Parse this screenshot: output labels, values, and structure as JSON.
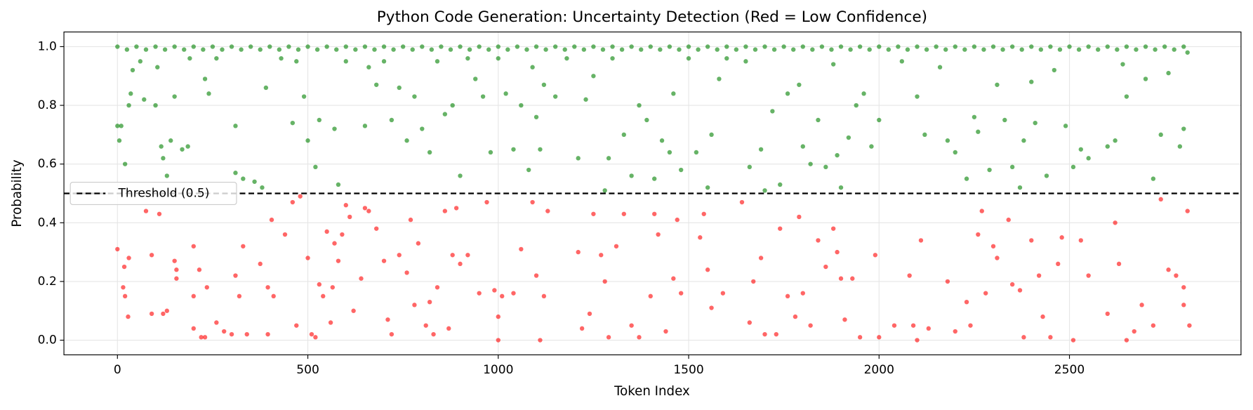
{
  "chart_data": {
    "type": "scatter",
    "title": "Python Code Generation: Uncertainty Detection (Red = Low Confidence)",
    "x_label": "Token Index",
    "y_label": "Probability",
    "xlim": [
      -140.5,
      2950.5
    ],
    "ylim": [
      -0.05,
      1.05
    ],
    "xticks": [
      0,
      500,
      1000,
      1500,
      2000,
      2500
    ],
    "yticks": [
      {
        "value": 0,
        "label": "0.0"
      },
      0.2,
      0.4,
      0.6,
      0.8,
      {
        "value": 1,
        "label": "1.0"
      }
    ],
    "grid": true,
    "legend": "left",
    "threshold": {
      "value": 0.5,
      "label": "Threshold (0.5)",
      "color": "#000000"
    },
    "series": [
      {
        "color": "#ff0000",
        "x": [
          0,
          15,
          18,
          20,
          30,
          28,
          75,
          90,
          90,
          110,
          120,
          130,
          150,
          155,
          155,
          200,
          200,
          200,
          215,
          220,
          230,
          235,
          260,
          280,
          300,
          310,
          320,
          330,
          340,
          375,
          395,
          395,
          410,
          405,
          440,
          460,
          470,
          480,
          500,
          510,
          520,
          530,
          540,
          550,
          560,
          565,
          570,
          580,
          590,
          600,
          610,
          620,
          640,
          650,
          660,
          680,
          700,
          710,
          720,
          740,
          760,
          770,
          780,
          790,
          810,
          820,
          830,
          840,
          860,
          870,
          880,
          890,
          900,
          920,
          950,
          970,
          990,
          1000,
          1000,
          1010,
          1040,
          1060,
          1090,
          1100,
          1110,
          1120,
          1130,
          1210,
          1220,
          1240,
          1250,
          1270,
          1280,
          1290,
          1310,
          1330,
          1350,
          1370,
          1400,
          1410,
          1420,
          1440,
          1460,
          1470,
          1480,
          1530,
          1540,
          1550,
          1560,
          1590,
          1640,
          1660,
          1670,
          1690,
          1700,
          1730,
          1740,
          1760,
          1780,
          1790,
          1800,
          1820,
          1840,
          1860,
          1880,
          1890,
          1900,
          1910,
          1930,
          1950,
          1990,
          2000,
          2040,
          2080,
          2090,
          2100,
          2110,
          2130,
          2180,
          2200,
          2230,
          2240,
          2260,
          2270,
          2280,
          2300,
          2310,
          2340,
          2350,
          2370,
          2380,
          2400,
          2420,
          2430,
          2450,
          2470,
          2480,
          2510,
          2530,
          2550,
          2600,
          2620,
          2630,
          2650,
          2670,
          2690,
          2720,
          2740,
          2760,
          2780,
          2800,
          2800,
          2810,
          2815
        ],
        "values": [
          0.31,
          0.18,
          0.25,
          0.15,
          0.28,
          0.08,
          0.44,
          0.29,
          0.09,
          0.43,
          0.09,
          0.1,
          0.27,
          0.21,
          0.24,
          0.32,
          0.15,
          0.04,
          0.24,
          0.01,
          0.01,
          0.18,
          0.06,
          0.03,
          0.02,
          0.22,
          0.15,
          0.32,
          0.02,
          0.26,
          0.18,
          0.02,
          0.15,
          0.41,
          0.36,
          0.47,
          0.05,
          0.49,
          0.28,
          0.02,
          0.01,
          0.19,
          0.15,
          0.37,
          0.06,
          0.18,
          0.33,
          0.27,
          0.36,
          0.46,
          0.42,
          0.1,
          0.21,
          0.45,
          0.44,
          0.38,
          0.27,
          0.07,
          0.02,
          0.29,
          0.23,
          0.41,
          0.12,
          0.33,
          0.05,
          0.13,
          0.02,
          0.18,
          0.44,
          0.04,
          0.29,
          0.45,
          0.26,
          0.29,
          0.16,
          0.47,
          0.17,
          0,
          0.08,
          0.15,
          0.16,
          0.31,
          0.47,
          0.22,
          0,
          0.15,
          0.44,
          0.3,
          0.04,
          0.09,
          0.43,
          0.29,
          0.2,
          0.01,
          0.32,
          0.43,
          0.05,
          0.01,
          0.15,
          0.43,
          0.36,
          0.03,
          0.21,
          0.41,
          0.16,
          0.35,
          0.43,
          0.24,
          0.11,
          0.16,
          0.47,
          0.06,
          0.2,
          0.28,
          0.02,
          0.02,
          0.38,
          0.15,
          0.08,
          0.42,
          0.16,
          0.05,
          0.34,
          0.25,
          0.38,
          0.3,
          0.21,
          0.07,
          0.21,
          0.01,
          0.29,
          0.01,
          0.05,
          0.22,
          0.05,
          0,
          0.34,
          0.04,
          0.2,
          0.03,
          0.13,
          0.05,
          0.36,
          0.44,
          0.16,
          0.32,
          0.28,
          0.41,
          0.19,
          0.17,
          0.01,
          0.34,
          0.22,
          0.08,
          0.01,
          0.26,
          0.35,
          0,
          0.34,
          0.22,
          0.09,
          0.4,
          0.26,
          0,
          0.03,
          0.12,
          0.05,
          0.48,
          0.24,
          0.22,
          0.18,
          0.12,
          0.44,
          0.05
        ]
      },
      {
        "color": "#008000",
        "x": [
          0,
          5,
          10,
          20,
          30,
          35,
          40,
          60,
          70,
          100,
          105,
          115,
          120,
          130,
          140,
          150,
          170,
          185,
          190,
          230,
          240,
          260,
          310,
          310,
          330,
          360,
          380,
          390,
          430,
          460,
          470,
          490,
          500,
          520,
          530,
          570,
          580,
          600,
          650,
          660,
          680,
          700,
          720,
          740,
          760,
          780,
          800,
          820,
          840,
          860,
          880,
          900,
          920,
          940,
          960,
          980,
          1000,
          1020,
          1040,
          1060,
          1080,
          1090,
          1100,
          1110,
          1120,
          1150,
          1180,
          1210,
          1230,
          1250,
          1280,
          1290,
          1300,
          1330,
          1350,
          1370,
          1390,
          1410,
          1430,
          1450,
          1460,
          1480,
          1500,
          1520,
          1550,
          1560,
          1580,
          1600,
          1650,
          1660,
          1690,
          1700,
          1720,
          1740,
          1760,
          1790,
          1800,
          1820,
          1840,
          1860,
          1880,
          1890,
          1900,
          1920,
          1940,
          1960,
          1980,
          2000,
          2060,
          2100,
          2120,
          2160,
          2180,
          2200,
          2230,
          2250,
          2260,
          2290,
          2310,
          2330,
          2350,
          2370,
          2380,
          2400,
          2410,
          2440,
          2460,
          2490,
          2510,
          2530,
          2550,
          2600,
          2620,
          2640,
          2650,
          2700,
          2720,
          2740,
          2760,
          2790,
          2800,
          2810,
          0,
          50,
          100,
          150,
          200,
          250,
          300,
          350,
          400,
          450,
          500,
          550,
          600,
          650,
          700,
          750,
          800,
          850,
          900,
          950,
          1000,
          1050,
          1100,
          1150,
          1200,
          1250,
          1300,
          1350,
          1400,
          1450,
          1500,
          1550,
          1600,
          1650,
          1700,
          1750,
          1800,
          1850,
          1900,
          1950,
          2000,
          2050,
          2100,
          2150,
          2200,
          2250,
          2300,
          2350,
          2400,
          2450,
          2500,
          2550,
          2600,
          2650,
          2700,
          2750,
          2800,
          25,
          75,
          125,
          175,
          225,
          275,
          325,
          375,
          425,
          475,
          525,
          575,
          625,
          675,
          725,
          775,
          825,
          875,
          925,
          975,
          1025,
          1075,
          1125,
          1175,
          1225,
          1275,
          1325,
          1375,
          1425,
          1475,
          1525,
          1575,
          1625,
          1675,
          1725,
          1775,
          1825,
          1875,
          1925,
          1975,
          2025,
          2075,
          2125,
          2175,
          2225,
          2275,
          2325,
          2375,
          2425,
          2475,
          2525,
          2575,
          2625,
          2675,
          2725,
          2775
        ],
        "values": [
          0.73,
          0.68,
          0.73,
          0.6,
          0.8,
          0.84,
          0.92,
          0.95,
          0.82,
          0.8,
          0.93,
          0.66,
          0.62,
          0.56,
          0.68,
          0.83,
          0.65,
          0.66,
          0.96,
          0.89,
          0.84,
          0.96,
          0.57,
          0.73,
          0.55,
          0.54,
          0.52,
          0.86,
          0.96,
          0.74,
          0.95,
          0.83,
          0.68,
          0.59,
          0.75,
          0.72,
          0.53,
          0.95,
          0.73,
          0.93,
          0.87,
          0.95,
          0.75,
          0.86,
          0.68,
          0.83,
          0.72,
          0.64,
          0.95,
          0.77,
          0.8,
          0.56,
          0.96,
          0.89,
          0.83,
          0.64,
          0.96,
          0.84,
          0.65,
          0.8,
          0.58,
          0.93,
          0.76,
          0.65,
          0.87,
          0.83,
          0.96,
          0.62,
          0.82,
          0.9,
          0.51,
          0.62,
          0.96,
          0.7,
          0.56,
          0.8,
          0.75,
          0.55,
          0.68,
          0.64,
          0.84,
          0.58,
          0.96,
          0.64,
          0.52,
          0.7,
          0.89,
          0.96,
          0.95,
          0.59,
          0.65,
          0.51,
          0.78,
          0.53,
          0.84,
          0.87,
          0.66,
          0.6,
          0.75,
          0.59,
          0.94,
          0.63,
          0.52,
          0.69,
          0.8,
          0.84,
          0.66,
          0.75,
          0.95,
          0.83,
          0.7,
          0.93,
          0.68,
          0.64,
          0.55,
          0.76,
          0.71,
          0.58,
          0.87,
          0.75,
          0.59,
          0.52,
          0.68,
          0.88,
          0.74,
          0.56,
          0.92,
          0.73,
          0.59,
          0.65,
          0.62,
          0.66,
          0.68,
          0.94,
          0.83,
          0.89,
          0.55,
          0.7,
          0.91,
          0.66,
          0.72,
          0.98,
          1,
          1,
          1,
          1,
          1,
          1,
          1,
          1,
          1,
          1,
          1,
          1,
          1,
          1,
          1,
          1,
          1,
          1,
          1,
          1,
          1,
          1,
          1,
          1,
          1,
          1,
          1,
          1,
          1,
          1,
          1,
          1,
          1,
          1,
          1,
          1,
          1,
          1,
          1,
          1,
          1,
          1,
          1,
          1,
          1,
          1,
          1,
          1,
          1,
          1,
          1,
          1,
          1,
          1,
          1,
          1,
          1,
          0.99,
          0.99,
          0.99,
          0.99,
          0.99,
          0.99,
          0.99,
          0.99,
          0.99,
          0.99,
          0.99,
          0.99,
          0.99,
          0.99,
          0.99,
          0.99,
          0.99,
          0.99,
          0.99,
          0.99,
          0.99,
          0.99,
          0.99,
          0.99,
          0.99,
          0.99,
          0.99,
          0.99,
          0.99,
          0.99,
          0.99,
          0.99,
          0.99,
          0.99,
          0.99,
          0.99,
          0.99,
          0.99,
          0.99,
          0.99,
          0.99,
          0.99,
          0.99,
          0.99,
          0.99,
          0.99,
          0.99,
          0.99,
          0.99,
          0.99,
          0.99,
          0.99,
          0.99,
          0.99,
          0.99,
          0.99
        ]
      }
    ]
  }
}
